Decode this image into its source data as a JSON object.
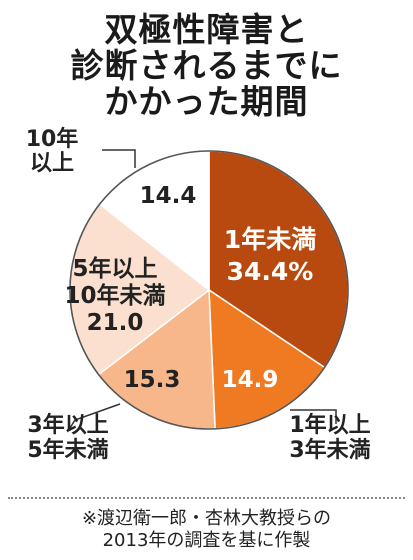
{
  "title_lines": [
    "双極性障害と",
    "診断されるまでに",
    "かかった期間"
  ],
  "source_lines": [
    "※渡辺衛一郎・杏林大教授らの",
    "2013年の調査を基に作製"
  ],
  "chart_data": {
    "type": "pie",
    "title": "双極性障害と診断されるまでにかかった期間",
    "slices": [
      {
        "label_lines": [
          "1年未満"
        ],
        "value": 34.4,
        "value_text": "34.4%",
        "color": "#b84a0f"
      },
      {
        "label_lines": [
          "1年以上",
          "3年未満"
        ],
        "value": 14.9,
        "value_text": "14.9",
        "color": "#f07a22"
      },
      {
        "label_lines": [
          "3年以上",
          "5年未満"
        ],
        "value": 15.3,
        "value_text": "15.3",
        "color": "#f7b78a"
      },
      {
        "label_lines": [
          "5年以上",
          "10年未満"
        ],
        "value": 21.0,
        "value_text": "21.0",
        "color": "#fbe0cf"
      },
      {
        "label_lines": [
          "10年",
          "以上"
        ],
        "value": 14.4,
        "value_text": "14.4",
        "color": "#ffffff"
      }
    ]
  }
}
